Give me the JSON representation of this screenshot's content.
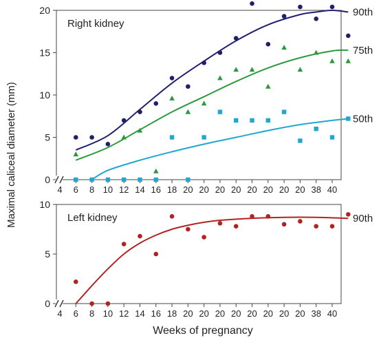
{
  "figure": {
    "ylabel": "Maximal caliceal diameter (mm)",
    "xlabel": "Weeks of pregnancy",
    "x_tick_labels": [
      "4",
      "6",
      "8",
      "10",
      "12",
      "14",
      "16",
      "18",
      "20",
      "20",
      "20",
      "20",
      "20",
      "20",
      "20",
      "20",
      "38",
      "40"
    ]
  },
  "chart_data": [
    {
      "type": "scatter",
      "panel_label": "Right kidney",
      "ylim": [
        0,
        20
      ],
      "yticks": [
        0,
        5,
        10,
        15,
        20
      ],
      "grid": false,
      "series": [
        {
          "name": "90th",
          "color": "#1f1f6e",
          "marker": "circle",
          "points": [
            [
              1,
              5
            ],
            [
              2,
              5
            ],
            [
              3,
              4.2
            ],
            [
              4,
              7
            ],
            [
              5,
              8
            ],
            [
              6,
              9
            ],
            [
              7,
              12
            ],
            [
              8,
              11
            ],
            [
              9,
              13.8
            ],
            [
              10,
              15
            ],
            [
              11,
              16.7
            ],
            [
              12,
              20.8
            ],
            [
              13,
              16
            ],
            [
              14,
              19.3
            ],
            [
              15,
              20.4
            ],
            [
              16,
              19
            ],
            [
              17,
              20.4
            ],
            [
              18,
              17
            ]
          ],
          "curve": [
            [
              1,
              3.5
            ],
            [
              3,
              5.2
            ],
            [
              5,
              8.3
            ],
            [
              7,
              11.4
            ],
            [
              9,
              14
            ],
            [
              11,
              16.4
            ],
            [
              13,
              18.3
            ],
            [
              15,
              19.5
            ],
            [
              16,
              19.8
            ],
            [
              17,
              20
            ],
            [
              18,
              19.8
            ]
          ]
        },
        {
          "name": "75th",
          "color": "#2a9a3a",
          "marker": "triangle",
          "points": [
            [
              1,
              3
            ],
            [
              4,
              5
            ],
            [
              5,
              5.8
            ],
            [
              6,
              1
            ],
            [
              7,
              9.6
            ],
            [
              8,
              8
            ],
            [
              9,
              9
            ],
            [
              10,
              12
            ],
            [
              11,
              13
            ],
            [
              12,
              13
            ],
            [
              13,
              11
            ],
            [
              14,
              15.6
            ],
            [
              15,
              13
            ],
            [
              16,
              15
            ],
            [
              17,
              14
            ],
            [
              18,
              14
            ]
          ],
          "curve": [
            [
              1,
              2.3
            ],
            [
              3,
              3.8
            ],
            [
              5,
              5.9
            ],
            [
              7,
              8
            ],
            [
              9,
              9.8
            ],
            [
              11,
              11.6
            ],
            [
              13,
              13.2
            ],
            [
              15,
              14.4
            ],
            [
              17,
              15.2
            ],
            [
              18,
              15.3
            ]
          ]
        },
        {
          "name": "50th",
          "color": "#1fa6d3",
          "marker": "square",
          "points": [
            [
              1,
              0
            ],
            [
              2,
              0
            ],
            [
              3,
              0
            ],
            [
              4,
              0
            ],
            [
              5,
              0
            ],
            [
              6,
              0
            ],
            [
              7,
              5
            ],
            [
              8,
              0
            ],
            [
              9,
              5
            ],
            [
              10,
              8
            ],
            [
              11,
              7
            ],
            [
              12,
              7
            ],
            [
              13,
              7
            ],
            [
              14,
              8
            ],
            [
              15,
              4.6
            ],
            [
              16,
              6
            ],
            [
              17,
              5
            ],
            [
              18,
              7.2
            ]
          ],
          "curve": [
            [
              2,
              0
            ],
            [
              3,
              1.1
            ],
            [
              5,
              2.3
            ],
            [
              7,
              3.3
            ],
            [
              9,
              4.2
            ],
            [
              11,
              5
            ],
            [
              13,
              5.8
            ],
            [
              15,
              6.5
            ],
            [
              17,
              7
            ],
            [
              18,
              7.2
            ]
          ]
        }
      ]
    },
    {
      "type": "scatter",
      "panel_label": "Left kidney",
      "ylim": [
        0,
        10
      ],
      "yticks": [
        0,
        5,
        10
      ],
      "grid": false,
      "series": [
        {
          "name": "90th",
          "color": "#b22222",
          "marker": "circle",
          "points": [
            [
              1,
              2.2
            ],
            [
              2,
              0
            ],
            [
              3,
              0
            ],
            [
              4,
              6
            ],
            [
              5,
              6.8
            ],
            [
              6,
              5
            ],
            [
              7,
              8.8
            ],
            [
              8,
              7.5
            ],
            [
              9,
              6.7
            ],
            [
              10,
              8.1
            ],
            [
              11,
              7.8
            ],
            [
              12,
              8.8
            ],
            [
              13,
              8.8
            ],
            [
              14,
              8
            ],
            [
              15,
              8.3
            ],
            [
              16,
              7.8
            ],
            [
              17,
              7.8
            ],
            [
              18,
              9
            ]
          ],
          "curve": [
            [
              1,
              0
            ],
            [
              2,
              1.8
            ],
            [
              3,
              3.5
            ],
            [
              4,
              5
            ],
            [
              5,
              6.1
            ],
            [
              6,
              6.9
            ],
            [
              7,
              7.5
            ],
            [
              8,
              7.9
            ],
            [
              9,
              8.2
            ],
            [
              10,
              8.4
            ],
            [
              12,
              8.6
            ],
            [
              14,
              8.7
            ],
            [
              16,
              8.7
            ],
            [
              18,
              8.6
            ]
          ]
        }
      ]
    }
  ]
}
